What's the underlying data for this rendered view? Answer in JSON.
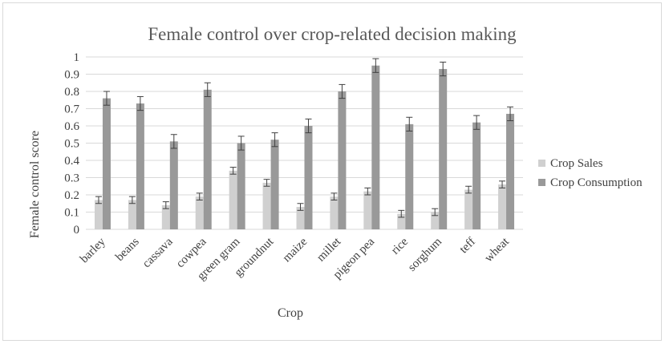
{
  "chart_data": {
    "type": "bar",
    "title": "Female control over crop-related decision making",
    "xlabel": "Crop",
    "ylabel": "Female control score",
    "ylim": [
      0,
      1
    ],
    "yticks": [
      "0",
      "0.1",
      "0.2",
      "0.3",
      "0.4",
      "0.5",
      "0.6",
      "0.7",
      "0.8",
      "0.9",
      "1"
    ],
    "categories": [
      "barley",
      "beans",
      "cassava",
      "cowpea",
      "green gram",
      "groundnut",
      "maize",
      "millet",
      "pigeon pea",
      "rice",
      "sorghum",
      "teff",
      "wheat"
    ],
    "series": [
      {
        "name": "Crop Sales",
        "color": "#d0d0d0",
        "values": [
          0.17,
          0.17,
          0.14,
          0.19,
          0.34,
          0.27,
          0.13,
          0.19,
          0.22,
          0.09,
          0.1,
          0.23,
          0.26
        ],
        "errors": [
          0.02,
          0.02,
          0.02,
          0.02,
          0.02,
          0.02,
          0.02,
          0.02,
          0.02,
          0.02,
          0.02,
          0.02,
          0.02
        ]
      },
      {
        "name": "Crop Consumption",
        "color": "#999999",
        "values": [
          0.76,
          0.73,
          0.51,
          0.81,
          0.5,
          0.52,
          0.6,
          0.8,
          0.95,
          0.61,
          0.93,
          0.62,
          0.67
        ],
        "errors": [
          0.04,
          0.04,
          0.04,
          0.04,
          0.04,
          0.04,
          0.04,
          0.04,
          0.04,
          0.04,
          0.04,
          0.04,
          0.04
        ]
      }
    ],
    "grid": true,
    "legend_position": "right"
  }
}
